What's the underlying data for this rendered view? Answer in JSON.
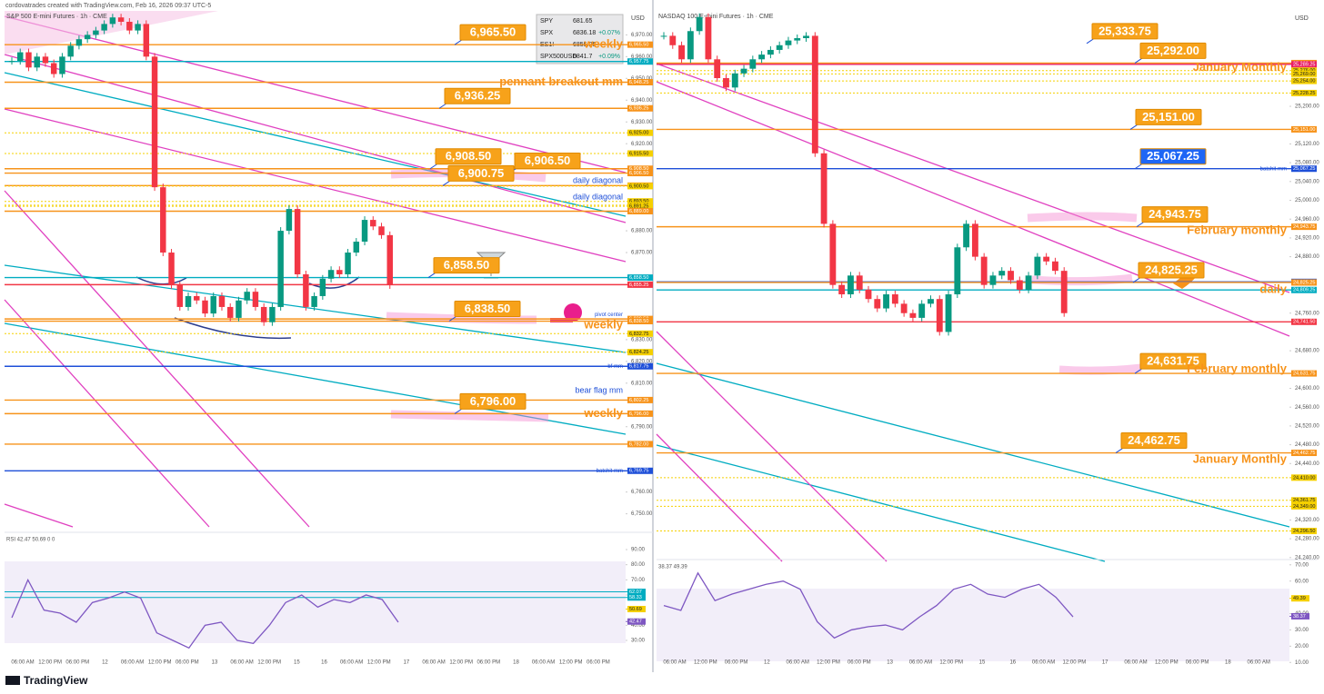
{
  "header": {
    "caption": "cordovatrades created with TradingView.com, Feb 16, 2026 09:37 UTC-5"
  },
  "watchlist": [
    {
      "symbol": "SPY",
      "price": "681.65"
    },
    {
      "symbol": "SPX",
      "price": "6836.18",
      "change": "+0.07%"
    },
    {
      "symbol": "ES1!",
      "price": "6855.25"
    },
    {
      "symbol": "SPX500USD",
      "price": "6841.7",
      "change": "+0.09%"
    }
  ],
  "charts": [
    {
      "symbol": "S&P 500 E-mini Futures · 1h · CME",
      "currency": "USD",
      "ylim": [
        6744,
        6981
      ],
      "yticks": [
        {
          "value": 6970,
          "label": "6,970.00"
        },
        {
          "value": 6960,
          "label": "6,960.00"
        },
        {
          "value": 6950,
          "label": "6,950.00"
        },
        {
          "value": 6940,
          "label": "6,940.00"
        },
        {
          "value": 6930,
          "label": "6,930.00"
        },
        {
          "value": 6920,
          "label": "6,920.00"
        },
        {
          "value": 6880,
          "label": "6,880.00"
        },
        {
          "value": 6870,
          "label": "6,870.00"
        },
        {
          "value": 6830,
          "label": "6,830.00"
        },
        {
          "value": 6820,
          "label": "6,820.00"
        },
        {
          "value": 6810,
          "label": "6,810.00"
        },
        {
          "value": 6790,
          "label": "6,790.00"
        },
        {
          "value": 6760,
          "label": "6,760.00"
        },
        {
          "value": 6750,
          "label": "6,750.00"
        }
      ],
      "closes": [
        6958,
        6962,
        6955,
        6960,
        6957,
        6952,
        6960,
        6965,
        6968,
        6970,
        6972,
        6975,
        6978,
        6976,
        6972,
        6975,
        6960,
        6900,
        6870,
        6855,
        6845,
        6850,
        6848,
        6842,
        6850,
        6845,
        6840,
        6848,
        6852,
        6845,
        6838,
        6845,
        6880,
        6890,
        6860,
        6845,
        6850,
        6858,
        6862,
        6860,
        6870,
        6875,
        6885,
        6882,
        6878,
        6855
      ],
      "axis_tags": [
        {
          "value": 6965.5,
          "label": "6,965.50",
          "color": "#f7931a"
        },
        {
          "value": 6957.75,
          "label": "6,957.75",
          "color": "#00acc1"
        },
        {
          "value": 6948.25,
          "label": "6,948.25",
          "color": "#f7931a"
        },
        {
          "value": 6936.25,
          "label": "6,936.25",
          "color": "#f7931a"
        },
        {
          "value": 6925,
          "label": "6,925.00",
          "color": "#f5d000"
        },
        {
          "value": 6915.5,
          "label": "6,915.50",
          "color": "#f5d000"
        },
        {
          "value": 6908.5,
          "label": "6,908.50",
          "color": "#f7931a"
        },
        {
          "value": 6906.5,
          "label": "6,906.50",
          "color": "#f7931a"
        },
        {
          "value": 6900.75,
          "label": "6,900.75",
          "color": "#f7931a"
        },
        {
          "value": 6900.5,
          "label": "6,900.50",
          "color": "#f5d000"
        },
        {
          "value": 6893.5,
          "label": "6,893.50",
          "color": "#f5d000"
        },
        {
          "value": 6891.75,
          "label": "6,891.75",
          "color": "#f5d000"
        },
        {
          "value": 6891.25,
          "label": "6,891.25",
          "color": "#f5d000"
        },
        {
          "value": 6889,
          "label": "6,889.00",
          "color": "#f7931a"
        },
        {
          "value": 6858.5,
          "label": "6,858.50",
          "color": "#00acc1"
        },
        {
          "value": 6855.25,
          "label": "6,855.25",
          "color": "#f23645"
        },
        {
          "value": 6839.5,
          "label": "6,839.50",
          "color": "#f7931a"
        },
        {
          "value": 6838.5,
          "label": "6,838.50",
          "color": "#f7931a"
        },
        {
          "value": 6832.75,
          "label": "6,832.75",
          "color": "#f5d000"
        },
        {
          "value": 6824.25,
          "label": "6,824.25",
          "color": "#f5d000"
        },
        {
          "value": 6817.75,
          "label": "6,817.75",
          "color": "#1e4fd8"
        },
        {
          "value": 6802.25,
          "label": "6,802.25",
          "color": "#f7931a"
        },
        {
          "value": 6796,
          "label": "6,796.00",
          "color": "#f7931a"
        },
        {
          "value": 6782,
          "label": "6,782.00",
          "color": "#f7931a"
        },
        {
          "value": 6769.75,
          "label": "6,769.75",
          "color": "#1e4fd8"
        }
      ],
      "boxes": [
        {
          "value": 6965.5,
          "label": "6,965.50"
        },
        {
          "value": 6936.25,
          "label": "6,936.25"
        },
        {
          "value": 6908.5,
          "label": "6,908.50"
        },
        {
          "value": 6906.5,
          "label": "6,906.50"
        },
        {
          "value": 6900.75,
          "label": "6,900.75"
        },
        {
          "value": 6858.5,
          "label": "6,858.50"
        },
        {
          "value": 6838.5,
          "label": "6,838.50"
        },
        {
          "value": 6796,
          "label": "6,796.00"
        }
      ],
      "notes": [
        {
          "text": "weekly",
          "value": 6965.5,
          "color": "#f7931a",
          "size": "big"
        },
        {
          "text": "pennant breakout mm",
          "value": 6948.25,
          "color": "#f7931a",
          "size": "big"
        },
        {
          "text": "daily diagonal",
          "value": 6903,
          "color": "#1e4fd8",
          "size": "mid"
        },
        {
          "text": "daily diagonal",
          "value": 6895.5,
          "color": "#1e4fd8",
          "size": "mid"
        },
        {
          "text": "pivot center",
          "value": 6841.5,
          "color": "#1e4fd8",
          "size": "small"
        },
        {
          "text": "weekly",
          "value": 6836.5,
          "color": "#f7931a",
          "size": "big"
        },
        {
          "text": "bf mm",
          "value": 6817.75,
          "color": "#1e4fd8",
          "size": "small"
        },
        {
          "text": "bear flag mm",
          "value": 6806.5,
          "color": "#1e4fd8",
          "size": "mid"
        },
        {
          "text": "weekly",
          "value": 6796,
          "color": "#f7931a",
          "size": "big"
        },
        {
          "text": "batshit mm",
          "value": 6769.75,
          "color": "#1e4fd8",
          "size": "small"
        }
      ],
      "x_labels": [
        "06:00 AM",
        "12:00 PM",
        "06:00 PM",
        "12",
        "06:00 AM",
        "12:00 PM",
        "06:00 PM",
        "13",
        "06:00 AM",
        "12:00 PM",
        "15",
        "16",
        "06:00 AM",
        "12:00 PM",
        "17",
        "06:00 AM",
        "12:00 PM",
        "06:00 PM",
        "18",
        "06:00 AM",
        "12:00 PM",
        "06:00 PM"
      ],
      "rsi": {
        "legend": "RSI 42.47 50.69 0 0",
        "ylim": [
          21,
          99
        ],
        "yticks": [
          {
            "value": 90,
            "label": "90.00"
          },
          {
            "value": 80,
            "label": "80.00"
          },
          {
            "value": 70,
            "label": "70.00"
          },
          {
            "value": 60,
            "label": "60.00"
          },
          {
            "value": 40,
            "label": "40.00"
          },
          {
            "value": 30,
            "label": "30.00"
          }
        ],
        "values": [
          45,
          70,
          50,
          48,
          42,
          55,
          58,
          62,
          58,
          35,
          30,
          25,
          40,
          42,
          30,
          28,
          40,
          55,
          60,
          52,
          57,
          55,
          60,
          57,
          42
        ],
        "tags": [
          {
            "value": 62.07,
            "label": "62.07",
            "color": "#00acc1"
          },
          {
            "value": 58.33,
            "label": "58.33",
            "color": "#00acc1"
          },
          {
            "value": 50.69,
            "label": "50.69",
            "color": "#f5d000"
          },
          {
            "value": 42.47,
            "label": "42.47",
            "color": "#7e57c2"
          }
        ]
      }
    },
    {
      "symbol": "NASDAQ 100 E-mini Futures · 1h · CME",
      "currency": "USD",
      "ylim": [
        24228,
        25403
      ],
      "yticks": [
        {
          "value": 25200,
          "label": "25,200.00"
        },
        {
          "value": 25120,
          "label": "25,120.00"
        },
        {
          "value": 25080,
          "label": "25,080.00"
        },
        {
          "value": 25040,
          "label": "25,040.00"
        },
        {
          "value": 25000,
          "label": "25,000.00"
        },
        {
          "value": 24960,
          "label": "24,960.00"
        },
        {
          "value": 24920,
          "label": "24,920.00"
        },
        {
          "value": 24880,
          "label": "24,880.00"
        },
        {
          "value": 24760,
          "label": "24,760.00"
        },
        {
          "value": 24680,
          "label": "24,680.00"
        },
        {
          "value": 24600,
          "label": "24,600.00"
        },
        {
          "value": 24560,
          "label": "24,560.00"
        },
        {
          "value": 24520,
          "label": "24,520.00"
        },
        {
          "value": 24480,
          "label": "24,480.00"
        },
        {
          "value": 24440,
          "label": "24,440.00"
        },
        {
          "value": 24320,
          "label": "24,320.00"
        },
        {
          "value": 24280,
          "label": "24,280.00"
        },
        {
          "value": 24240,
          "label": "24,240.00"
        }
      ],
      "closes": [
        25350,
        25330,
        25300,
        25360,
        25390,
        25300,
        25260,
        25240,
        25270,
        25280,
        25300,
        25310,
        25320,
        25330,
        25340,
        25345,
        25350,
        25100,
        24950,
        24820,
        24800,
        24840,
        24810,
        24790,
        24770,
        24800,
        24780,
        24760,
        24750,
        24780,
        24790,
        24720,
        24800,
        24900,
        24950,
        24880,
        24820,
        24840,
        24850,
        24830,
        24810,
        24840,
        24880,
        24870,
        24850,
        24760
      ],
      "axis_tags": [
        {
          "value": 25292,
          "label": "25,292.00",
          "color": "#f7931a"
        },
        {
          "value": 25289.25,
          "label": "25,289.25",
          "color": "#e91e63"
        },
        {
          "value": 25276,
          "label": "25,276.00",
          "color": "#f5d000"
        },
        {
          "value": 25269,
          "label": "25,269.00",
          "color": "#f5d000"
        },
        {
          "value": 25254,
          "label": "25,254.00",
          "color": "#f5d000"
        },
        {
          "value": 25228.25,
          "label": "25,228.25",
          "color": "#f5d000"
        },
        {
          "value": 25151,
          "label": "25,151.00",
          "color": "#f7931a"
        },
        {
          "value": 25067.25,
          "label": "25,067.25",
          "color": "#1e4fd8"
        },
        {
          "value": 24943.75,
          "label": "24,943.75",
          "color": "#f7931a"
        },
        {
          "value": 24826.5,
          "label": "24,826.50",
          "color": "#1e4fd8"
        },
        {
          "value": 24825.25,
          "label": "24,825.25",
          "color": "#f7931a"
        },
        {
          "value": 24809.25,
          "label": "24,809.25",
          "color": "#00acc1"
        },
        {
          "value": 24741.5,
          "label": "24,741.50",
          "color": "#f23645"
        },
        {
          "value": 24631.75,
          "label": "24,631.75",
          "color": "#f7931a"
        },
        {
          "value": 24462.75,
          "label": "24,462.75",
          "color": "#f7931a"
        },
        {
          "value": 24410,
          "label": "24,410.00",
          "color": "#f5d000"
        },
        {
          "value": 24361.75,
          "label": "24,361.75",
          "color": "#f5d000"
        },
        {
          "value": 24349,
          "label": "24,349.00",
          "color": "#f5d000"
        },
        {
          "value": 24296.5,
          "label": "24,296.50",
          "color": "#f5d000"
        }
      ],
      "boxes": [
        {
          "value": 25333.75,
          "label": "25,333.75"
        },
        {
          "value": 25292,
          "label": "25,292.00"
        },
        {
          "value": 25151,
          "label": "25,151.00"
        },
        {
          "value": 25067.25,
          "label": "25,067.25"
        },
        {
          "value": 24943.75,
          "label": "24,943.75"
        },
        {
          "value": 24825.25,
          "label": "24,825.25"
        },
        {
          "value": 24631.75,
          "label": "24,631.75"
        },
        {
          "value": 24462.75,
          "label": "24,462.75"
        }
      ],
      "notes": [
        {
          "text": "January Monthly",
          "value": 25282,
          "color": "#f7931a",
          "size": "big"
        },
        {
          "text": "batshit mm",
          "value": 25067.25,
          "color": "#1e4fd8",
          "size": "small"
        },
        {
          "text": "February monthly",
          "value": 24935,
          "color": "#f7931a",
          "size": "big"
        },
        {
          "text": "daily",
          "value": 24810,
          "color": "#f7931a",
          "size": "big"
        },
        {
          "text": "February monthly",
          "value": 24640,
          "color": "#f7931a",
          "size": "big"
        },
        {
          "text": "January Monthly",
          "value": 24448,
          "color": "#f7931a",
          "size": "big"
        }
      ],
      "x_labels": [
        "06:00 AM",
        "12:00 PM",
        "06:00 PM",
        "12",
        "06:00 AM",
        "12:00 PM",
        "06:00 PM",
        "13",
        "06:00 AM",
        "12:00 PM",
        "15",
        "16",
        "06:00 AM",
        "12:00 PM",
        "17",
        "06:00 AM",
        "12:00 PM",
        "06:00 PM",
        "18",
        "06:00 AM"
      ],
      "rsi": {
        "legend": "38.37 49.39",
        "ylim": [
          4,
          71
        ],
        "yticks": [
          {
            "value": 70,
            "label": "70.00"
          },
          {
            "value": 60,
            "label": "60.00"
          },
          {
            "value": 40,
            "label": "40.00"
          },
          {
            "value": 30,
            "label": "30.00"
          },
          {
            "value": 20,
            "label": "20.00"
          },
          {
            "value": 10,
            "label": "10.00"
          }
        ],
        "values": [
          45,
          42,
          65,
          48,
          52,
          55,
          58,
          60,
          55,
          35,
          25,
          30,
          32,
          33,
          30,
          38,
          45,
          55,
          58,
          52,
          50,
          55,
          58,
          50,
          38
        ],
        "tags": [
          {
            "value": 49.39,
            "label": "49.39",
            "color": "#f5d000"
          },
          {
            "value": 38.37,
            "label": "38.37",
            "color": "#7e57c2"
          }
        ]
      }
    }
  ],
  "footer": {
    "brand": "TradingView"
  }
}
